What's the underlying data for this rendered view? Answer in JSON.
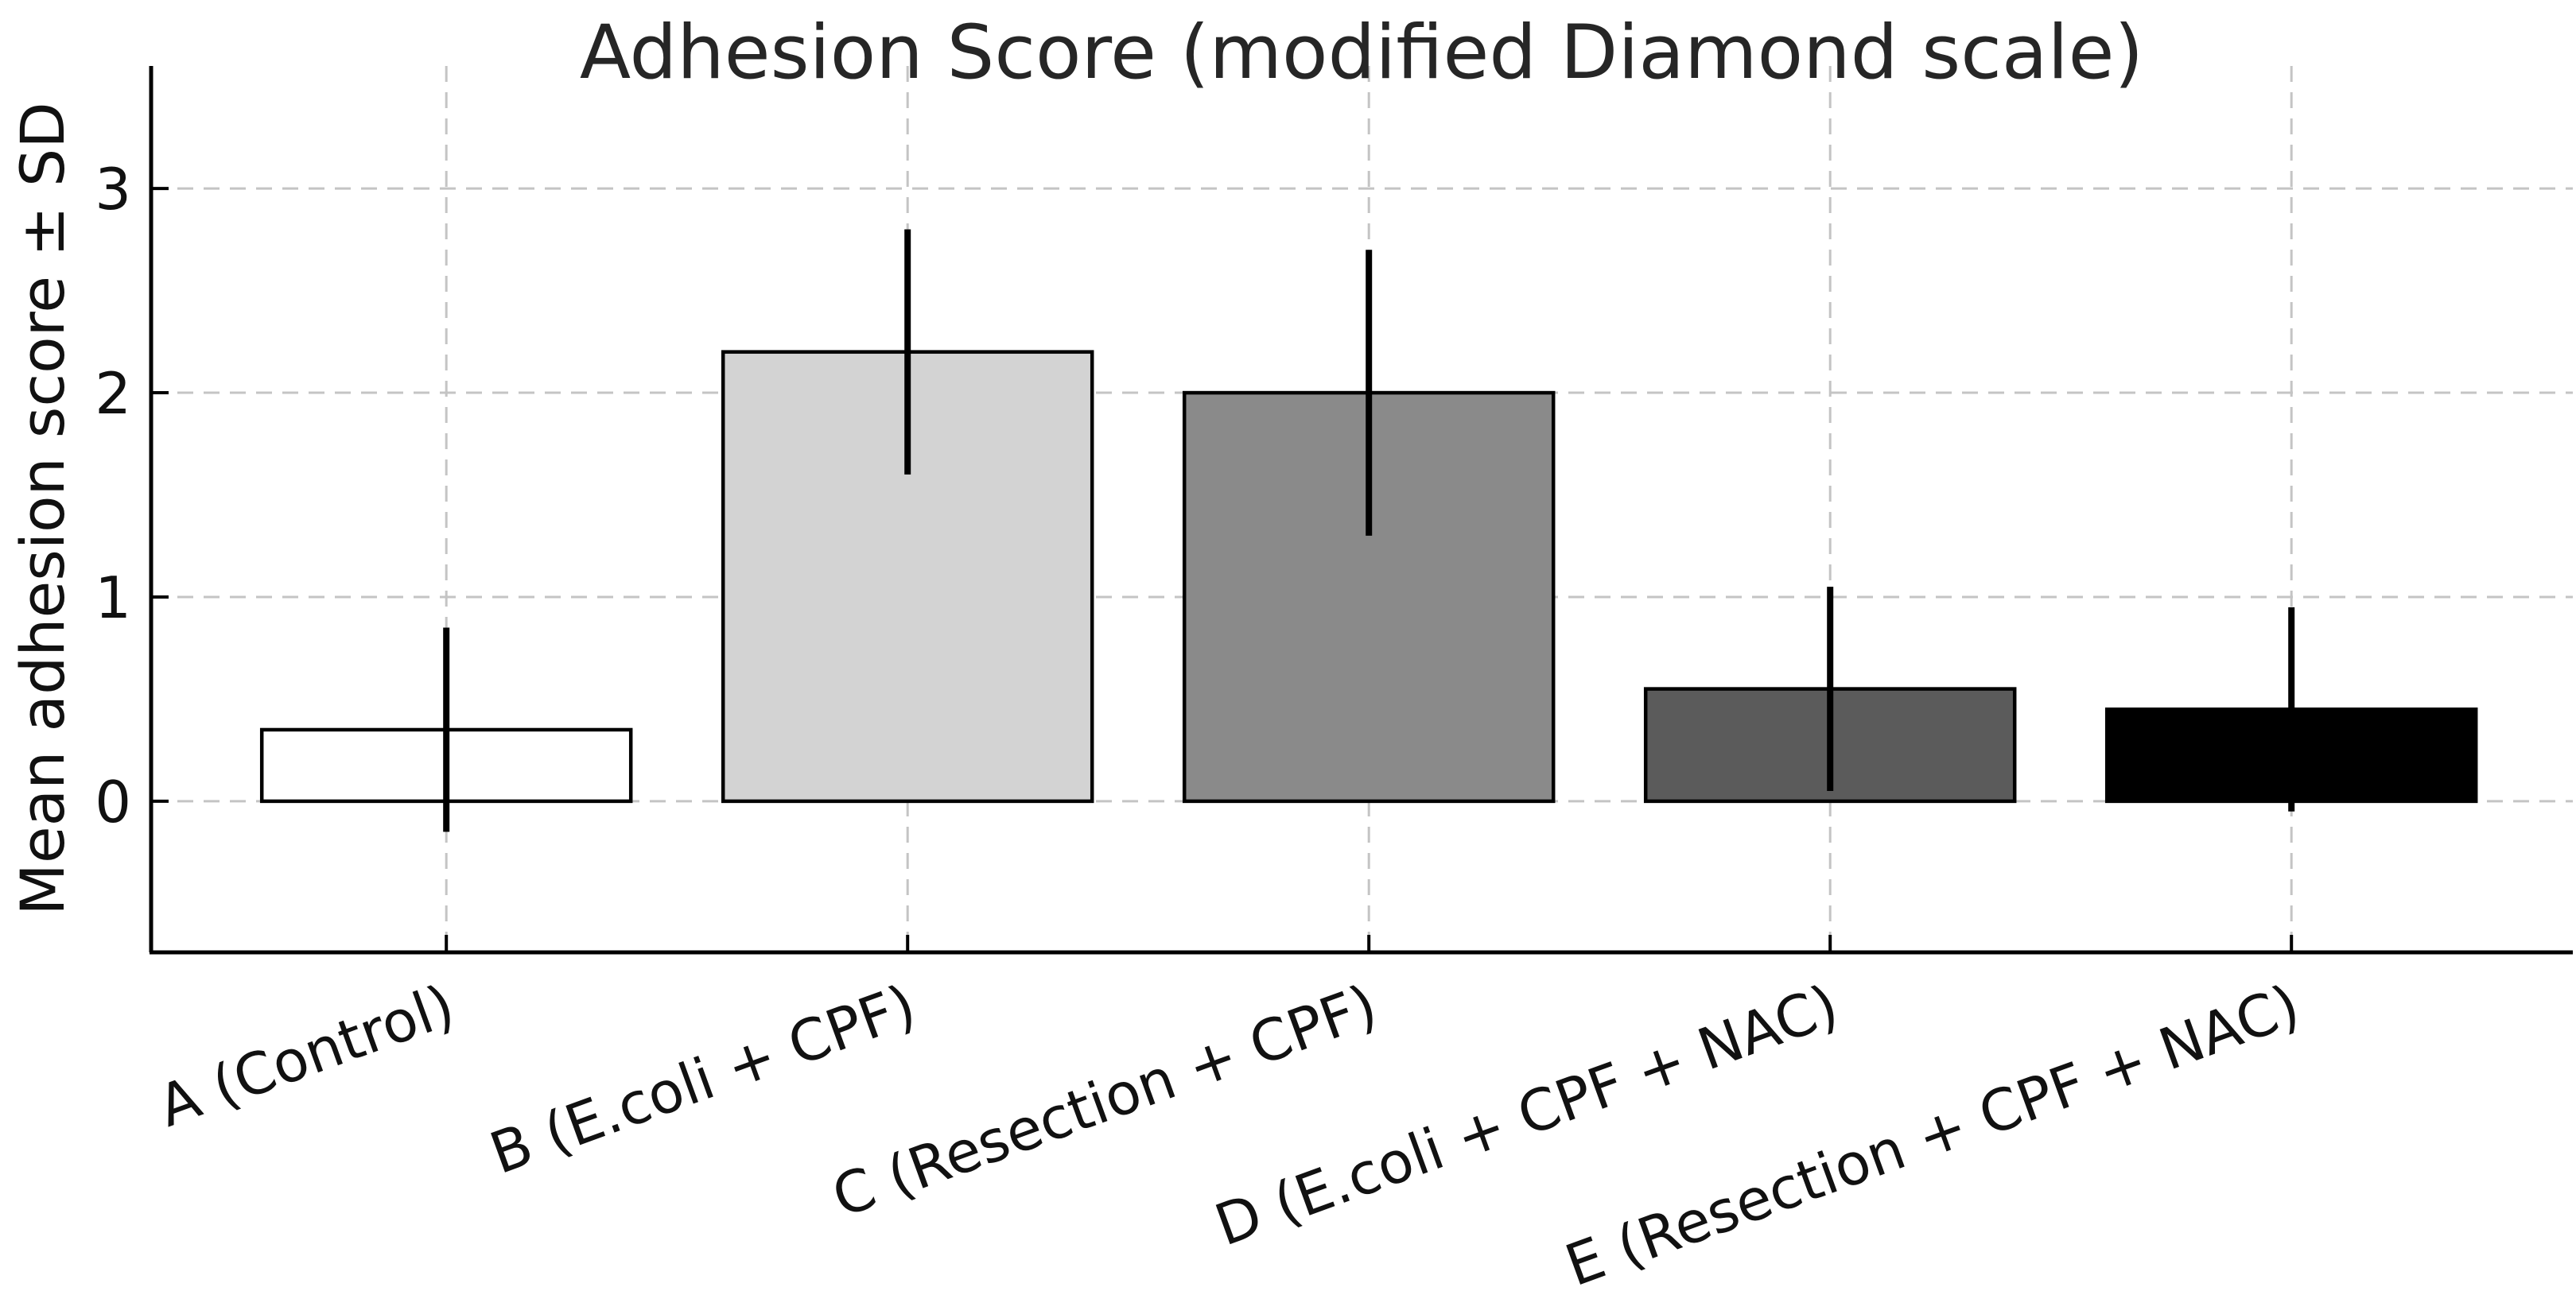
{
  "figure": {
    "title": "Adhesion Score (modified Diamond scale)",
    "ylabel": "Mean adhesion score ± SD",
    "background_color": "#ffffff",
    "text_color": "#262626",
    "tick_text_color": "#111111",
    "grid_color": "#c4c4c4",
    "spine_color": "#000000",
    "errorbar_color": "#000000"
  },
  "chart_data": {
    "type": "bar",
    "title": "Adhesion Score (modified Diamond scale)",
    "xlabel": "",
    "ylabel": "Mean adhesion score ± SD",
    "categories": [
      "A (Control)",
      "B (E.coli + CPF)",
      "C (Resection + CPF)",
      "D (E.coli + CPF + NAC)",
      "E (Resection + CPF + NAC)"
    ],
    "series": [
      {
        "name": "Mean adhesion score",
        "values": [
          0.35,
          2.2,
          2.0,
          0.55,
          0.45
        ],
        "sd": [
          0.5,
          0.6,
          0.7,
          0.5,
          0.5
        ]
      }
    ],
    "bar_colors": [
      "#ffffff",
      "#d3d3d3",
      "#8a8a8a",
      "#5b5b5b",
      "#000000"
    ],
    "bar_edge_color": "#000000",
    "yticks": [
      0,
      1,
      2,
      3
    ],
    "yticklabels": [
      "0",
      "1",
      "2",
      "3"
    ],
    "ylim": [
      -0.74,
      3.6
    ],
    "grid": "dashed, both axes",
    "legend": "none",
    "error_bars": "± SD, no caps",
    "xticklabel_rotation_deg": 20
  }
}
